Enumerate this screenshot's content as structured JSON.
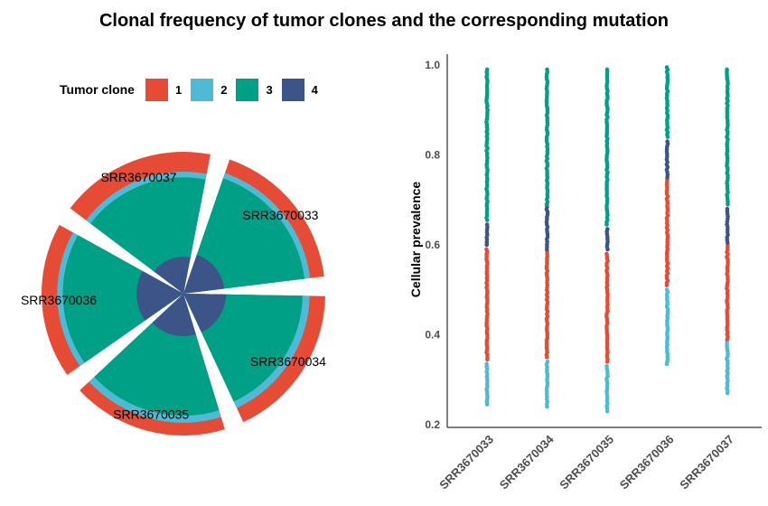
{
  "title": "Clonal frequency of tumor clones and the corresponding mutation",
  "legend": {
    "title": "Tumor clone",
    "items": [
      {
        "label": "1",
        "color": "#E64B35"
      },
      {
        "label": "2",
        "color": "#4DBBD5"
      },
      {
        "label": "3",
        "color": "#00A087"
      },
      {
        "label": "4",
        "color": "#3C5488"
      }
    ]
  },
  "chart_data": [
    {
      "type": "polar-bar",
      "samples": [
        {
          "name": "SRR3670033",
          "layers": [
            {
              "clone": "1",
              "value": 1.0
            },
            {
              "clone": "2",
              "value": 0.9
            },
            {
              "clone": "3",
              "value": 0.86
            },
            {
              "clone": "4",
              "value": 0.29
            }
          ]
        },
        {
          "name": "SRR3670034",
          "layers": [
            {
              "clone": "1",
              "value": 1.0
            },
            {
              "clone": "2",
              "value": 0.89
            },
            {
              "clone": "3",
              "value": 0.84
            },
            {
              "clone": "4",
              "value": 0.3
            }
          ]
        },
        {
          "name": "SRR3670035",
          "layers": [
            {
              "clone": "1",
              "value": 1.0
            },
            {
              "clone": "2",
              "value": 0.91
            },
            {
              "clone": "3",
              "value": 0.86
            },
            {
              "clone": "4",
              "value": 0.3
            }
          ]
        },
        {
          "name": "SRR3670036",
          "layers": [
            {
              "clone": "1",
              "value": 1.0
            },
            {
              "clone": "2",
              "value": 0.89
            },
            {
              "clone": "3",
              "value": 0.85
            },
            {
              "clone": "4",
              "value": 0.33
            }
          ]
        },
        {
          "name": "SRR3670037",
          "layers": [
            {
              "clone": "1",
              "value": 1.0
            },
            {
              "clone": "2",
              "value": 0.86
            },
            {
              "clone": "3",
              "value": 0.82
            },
            {
              "clone": "4",
              "value": 0.26
            }
          ]
        }
      ]
    },
    {
      "type": "scatter",
      "ylabel": "Cellular prevalence",
      "ylim": [
        0.2,
        1.0
      ],
      "yticks": [
        "0.2",
        "0.4",
        "0.6",
        "0.8",
        "1.0"
      ],
      "categories": [
        "SRR3670033",
        "SRR3670034",
        "SRR3670035",
        "SRR3670036",
        "SRR3670037"
      ],
      "clusters": [
        {
          "sample": "SRR3670033",
          "clone": "2",
          "ymin": 0.245,
          "ymax": 0.335
        },
        {
          "sample": "SRR3670033",
          "clone": "1",
          "ymin": 0.345,
          "ymax": 0.59
        },
        {
          "sample": "SRR3670033",
          "clone": "4",
          "ymin": 0.6,
          "ymax": 0.645
        },
        {
          "sample": "SRR3670033",
          "clone": "3",
          "ymin": 0.655,
          "ymax": 0.99
        },
        {
          "sample": "SRR3670034",
          "clone": "2",
          "ymin": 0.24,
          "ymax": 0.34
        },
        {
          "sample": "SRR3670034",
          "clone": "1",
          "ymin": 0.35,
          "ymax": 0.585
        },
        {
          "sample": "SRR3670034",
          "clone": "4",
          "ymin": 0.59,
          "ymax": 0.69
        },
        {
          "sample": "SRR3670034",
          "clone": "3",
          "ymin": 0.69,
          "ymax": 0.99
        },
        {
          "sample": "SRR3670035",
          "clone": "2",
          "ymin": 0.23,
          "ymax": 0.33
        },
        {
          "sample": "SRR3670035",
          "clone": "1",
          "ymin": 0.34,
          "ymax": 0.58
        },
        {
          "sample": "SRR3670035",
          "clone": "4",
          "ymin": 0.59,
          "ymax": 0.635
        },
        {
          "sample": "SRR3670035",
          "clone": "3",
          "ymin": 0.645,
          "ymax": 0.99
        },
        {
          "sample": "SRR3670036",
          "clone": "2",
          "ymin": 0.335,
          "ymax": 0.5
        },
        {
          "sample": "SRR3670036",
          "clone": "1",
          "ymin": 0.51,
          "ymax": 0.745
        },
        {
          "sample": "SRR3670036",
          "clone": "4",
          "ymin": 0.75,
          "ymax": 0.83
        },
        {
          "sample": "SRR3670036",
          "clone": "3",
          "ymin": 0.84,
          "ymax": 0.995
        },
        {
          "sample": "SRR3670037",
          "clone": "2",
          "ymin": 0.27,
          "ymax": 0.385
        },
        {
          "sample": "SRR3670037",
          "clone": "1",
          "ymin": 0.39,
          "ymax": 0.6
        },
        {
          "sample": "SRR3670037",
          "clone": "4",
          "ymin": 0.605,
          "ymax": 0.68
        },
        {
          "sample": "SRR3670037",
          "clone": "3",
          "ymin": 0.69,
          "ymax": 0.99
        }
      ]
    }
  ]
}
